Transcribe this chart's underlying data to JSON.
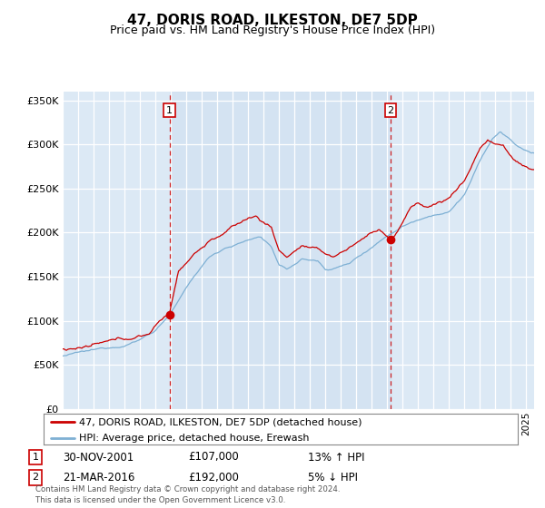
{
  "title": "47, DORIS ROAD, ILKESTON, DE7 5DP",
  "subtitle": "Price paid vs. HM Land Registry's House Price Index (HPI)",
  "legend_line1": "47, DORIS ROAD, ILKESTON, DE7 5DP (detached house)",
  "legend_line2": "HPI: Average price, detached house, Erewash",
  "annotation1_label": "1",
  "annotation1_date": "30-NOV-2001",
  "annotation1_price": "£107,000",
  "annotation1_hpi": "13% ↑ HPI",
  "annotation2_label": "2",
  "annotation2_date": "21-MAR-2016",
  "annotation2_price": "£192,000",
  "annotation2_hpi": "5% ↓ HPI",
  "footer": "Contains HM Land Registry data © Crown copyright and database right 2024.\nThis data is licensed under the Open Government Licence v3.0.",
  "bg_color": "#dce9f5",
  "red_color": "#cc0000",
  "blue_color": "#7eb0d4",
  "grid_color": "#cccccc",
  "ylim": [
    0,
    360000
  ],
  "yticks": [
    0,
    50000,
    100000,
    150000,
    200000,
    250000,
    300000,
    350000
  ],
  "sale1_x": 2001.917,
  "sale1_y": 107000,
  "sale2_x": 2016.22,
  "sale2_y": 192000,
  "xmin": 1995.0,
  "xmax": 2025.5
}
